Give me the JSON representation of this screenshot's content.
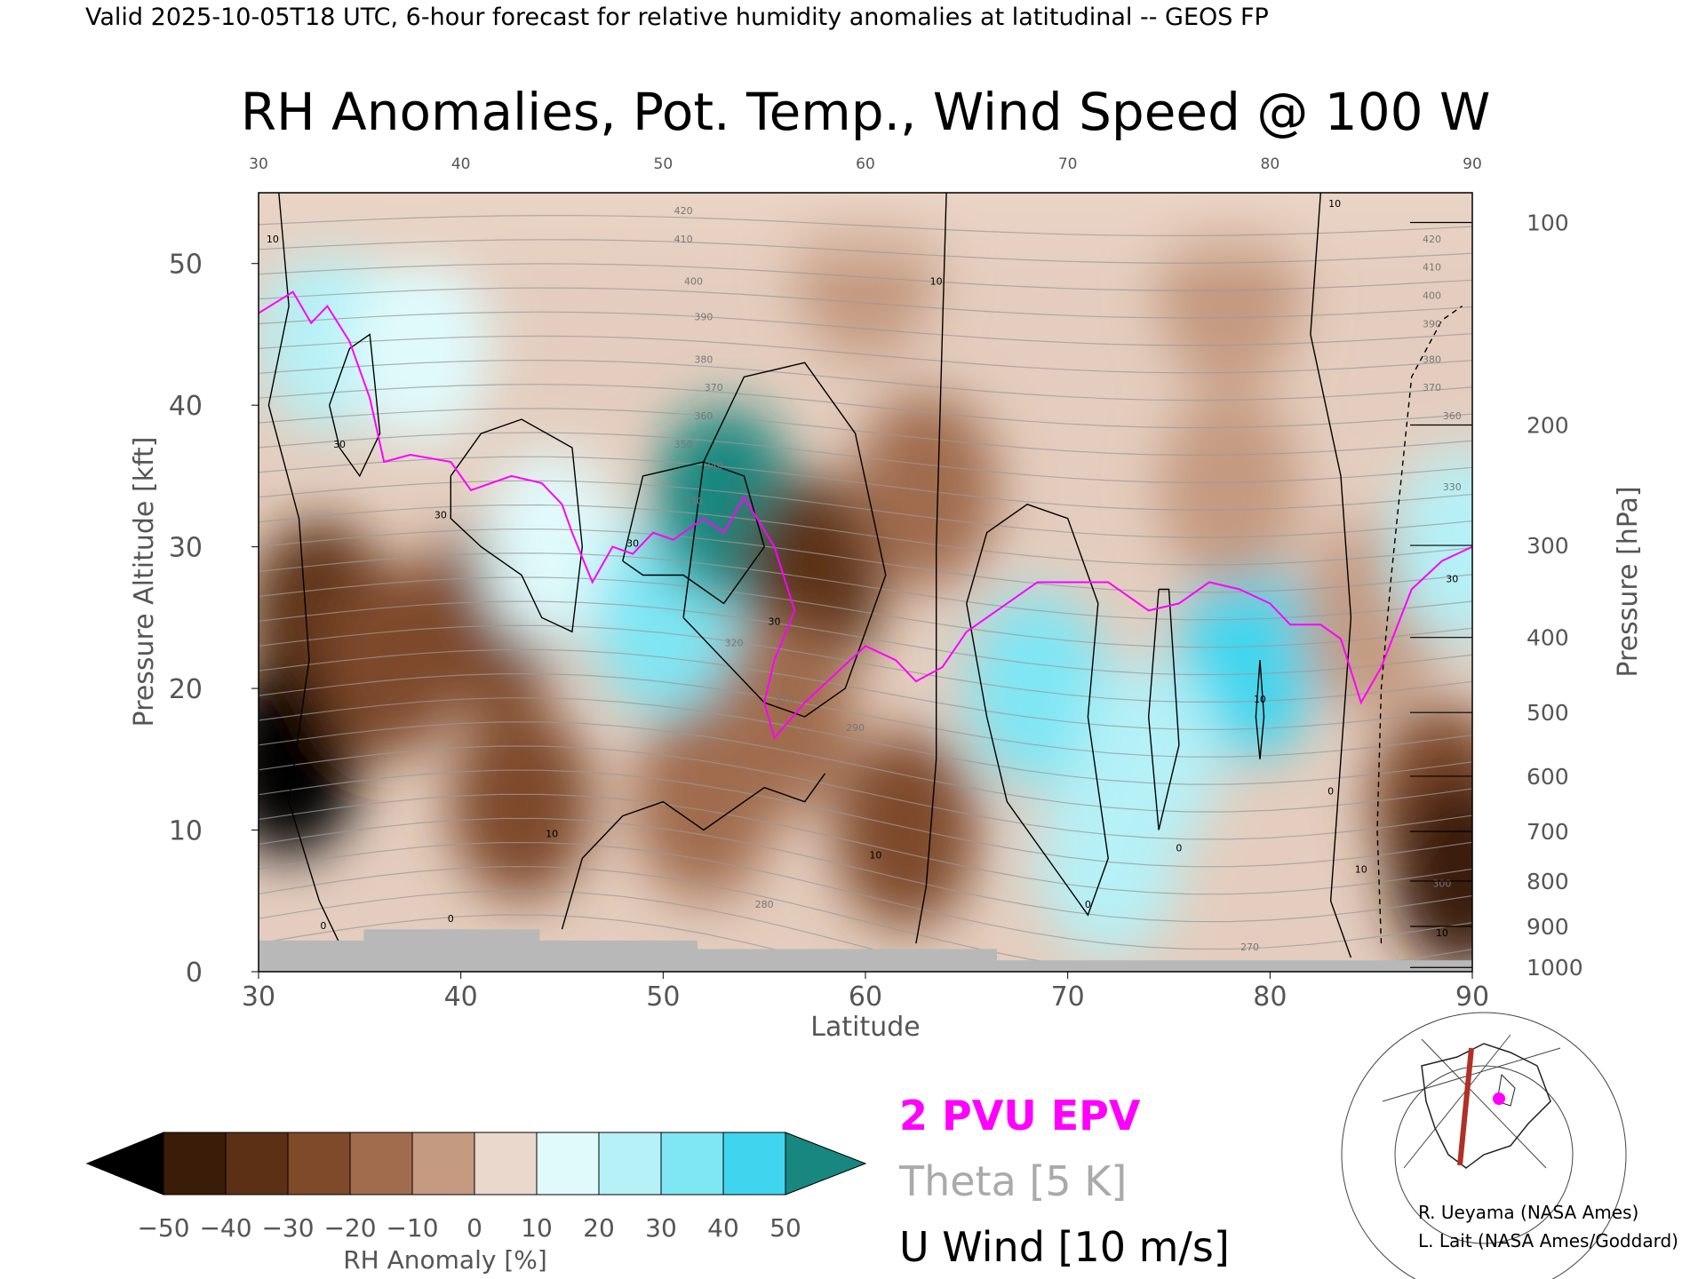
{
  "header": "Valid 2025-10-05T18 UTC, 6-hour forecast for relative humidity anomalies at latitudinal -- GEOS FP",
  "chart_data": {
    "type": "heatmap",
    "title": "RH Anomalies, Pot. Temp., Wind Speed @ 100 W",
    "xlabel": "Latitude",
    "ylabel": "Pressure Altitude [kft]",
    "y2label": "Pressure [hPa]",
    "xlim": [
      30,
      90
    ],
    "ylim": [
      0,
      55
    ],
    "x_ticks": [
      30,
      40,
      50,
      60,
      70,
      80,
      90
    ],
    "y_ticks": [
      0,
      10,
      20,
      30,
      40,
      50
    ],
    "pressure_ticks": [
      {
        "label": "100",
        "kft": 52.9
      },
      {
        "label": "200",
        "kft": 38.6
      },
      {
        "label": "300",
        "kft": 30.1
      },
      {
        "label": "400",
        "kft": 23.6
      },
      {
        "label": "500",
        "kft": 18.3
      },
      {
        "label": "600",
        "kft": 13.8
      },
      {
        "label": "700",
        "kft": 9.9
      },
      {
        "label": "800",
        "kft": 6.4
      },
      {
        "label": "900",
        "kft": 3.2
      },
      {
        "label": "1000",
        "kft": 0.3
      }
    ],
    "colorbar": {
      "label": "RH Anomaly [%]",
      "ticks": [
        -50,
        -40,
        -30,
        -20,
        -10,
        0,
        10,
        20,
        30,
        40,
        50
      ],
      "colors": [
        "#000000",
        "#3a1c08",
        "#5c3014",
        "#7e4a2a",
        "#a06c4d",
        "#c49a80",
        "#ead8cc",
        "#e0fafb",
        "#b5f1f7",
        "#7fe6f4",
        "#3fd5ee",
        "#13b4d8",
        "#0f8aa8",
        "#17877f"
      ]
    },
    "rh_anomaly_regions": [
      {
        "lat": 33.0,
        "kft": 25.0,
        "value": -35
      },
      {
        "lat": 31.5,
        "kft": 15.0,
        "value": -55
      },
      {
        "lat": 36.5,
        "kft": 22.0,
        "value": -30
      },
      {
        "lat": 41.5,
        "kft": 25.0,
        "value": -30
      },
      {
        "lat": 43.0,
        "kft": 12.0,
        "value": -30
      },
      {
        "lat": 33.5,
        "kft": 45.0,
        "value": 20
      },
      {
        "lat": 38.0,
        "kft": 44.0,
        "value": 15
      },
      {
        "lat": 44.5,
        "kft": 30.0,
        "value": 10
      },
      {
        "lat": 50.0,
        "kft": 25.0,
        "value": 35
      },
      {
        "lat": 53.0,
        "kft": 33.0,
        "value": 50
      },
      {
        "lat": 57.5,
        "kft": 28.0,
        "value": -35
      },
      {
        "lat": 56.0,
        "kft": 18.0,
        "value": -20
      },
      {
        "lat": 52.0,
        "kft": 12.0,
        "value": -15
      },
      {
        "lat": 62.0,
        "kft": 10.0,
        "value": -25
      },
      {
        "lat": 63.0,
        "kft": 34.0,
        "value": -15
      },
      {
        "lat": 68.5,
        "kft": 20.0,
        "value": 35
      },
      {
        "lat": 79.0,
        "kft": 22.0,
        "value": 40
      },
      {
        "lat": 74.0,
        "kft": 15.0,
        "value": 25
      },
      {
        "lat": 72.0,
        "kft": 8.0,
        "value": 20
      },
      {
        "lat": 78.0,
        "kft": 34.0,
        "value": -10
      },
      {
        "lat": 85.0,
        "kft": 25.0,
        "value": -10
      },
      {
        "lat": 88.5,
        "kft": 12.0,
        "value": -30
      },
      {
        "lat": 89.5,
        "kft": 7.0,
        "value": -50
      },
      {
        "lat": 89.5,
        "kft": 30.0,
        "value": 20
      },
      {
        "lat": 60.0,
        "kft": 50.0,
        "value": -5
      },
      {
        "lat": 78.0,
        "kft": 48.0,
        "value": -5
      }
    ],
    "theta_labels": [
      {
        "text": "420",
        "lat": 51.0,
        "kft": 53.5
      },
      {
        "text": "410",
        "lat": 51.0,
        "kft": 51.5
      },
      {
        "text": "400",
        "lat": 51.5,
        "kft": 48.5
      },
      {
        "text": "390",
        "lat": 52.0,
        "kft": 46.0
      },
      {
        "text": "380",
        "lat": 52.0,
        "kft": 43.0
      },
      {
        "text": "370",
        "lat": 52.5,
        "kft": 41.0
      },
      {
        "text": "360",
        "lat": 52.0,
        "kft": 39.0
      },
      {
        "text": "350",
        "lat": 51.0,
        "kft": 37.0
      },
      {
        "text": "340",
        "lat": 52.5,
        "kft": 35.5
      },
      {
        "text": "330",
        "lat": 51.5,
        "kft": 33.0
      },
      {
        "text": "320",
        "lat": 53.5,
        "kft": 23.0
      },
      {
        "text": "310",
        "lat": 56.0,
        "kft": 19.0
      },
      {
        "text": "290",
        "lat": 59.5,
        "kft": 17.0
      },
      {
        "text": "280",
        "lat": 55.0,
        "kft": 4.5
      },
      {
        "text": "270",
        "lat": 79.0,
        "kft": 1.5
      },
      {
        "text": "420",
        "lat": 88.0,
        "kft": 51.5
      },
      {
        "text": "410",
        "lat": 88.0,
        "kft": 49.5
      },
      {
        "text": "400",
        "lat": 88.0,
        "kft": 47.5
      },
      {
        "text": "390",
        "lat": 88.0,
        "kft": 45.5
      },
      {
        "text": "380",
        "lat": 88.0,
        "kft": 43.0
      },
      {
        "text": "370",
        "lat": 88.0,
        "kft": 41.0
      },
      {
        "text": "360",
        "lat": 89.0,
        "kft": 39.0
      },
      {
        "text": "330",
        "lat": 89.0,
        "kft": 34.0
      },
      {
        "text": "300",
        "lat": 88.5,
        "kft": 6.0
      }
    ],
    "wind_labels": [
      {
        "text": "10",
        "lat": 30.7,
        "kft": 51.5
      },
      {
        "text": "30",
        "lat": 34.0,
        "kft": 37.0
      },
      {
        "text": "30",
        "lat": 39.0,
        "kft": 32.0
      },
      {
        "text": "30",
        "lat": 48.5,
        "kft": 30.0
      },
      {
        "text": "30",
        "lat": 55.5,
        "kft": 24.5
      },
      {
        "text": "10",
        "lat": 63.5,
        "kft": 48.5
      },
      {
        "text": "10",
        "lat": 60.5,
        "kft": 8.0
      },
      {
        "text": "10",
        "lat": 44.5,
        "kft": 9.5
      },
      {
        "text": "0",
        "lat": 33.2,
        "kft": 3.0
      },
      {
        "text": "0",
        "lat": 39.5,
        "kft": 3.5
      },
      {
        "text": "0",
        "lat": 71.0,
        "kft": 4.5
      },
      {
        "text": "0",
        "lat": 75.5,
        "kft": 8.5
      },
      {
        "text": "10",
        "lat": 79.5,
        "kft": 19.0
      },
      {
        "text": "0",
        "lat": 83.0,
        "kft": 12.5
      },
      {
        "text": "10",
        "lat": 84.5,
        "kft": 7.0
      },
      {
        "text": "10",
        "lat": 83.2,
        "kft": 54.0
      },
      {
        "text": "30",
        "lat": 89.0,
        "kft": 27.5
      },
      {
        "text": "10",
        "lat": 88.5,
        "kft": 2.5
      }
    ],
    "epv_2pvu_line": [
      [
        30,
        46.5
      ],
      [
        31.7,
        48
      ],
      [
        32.6,
        45.8
      ],
      [
        33.4,
        47
      ],
      [
        34.5,
        44.5
      ],
      [
        35.5,
        40.5
      ],
      [
        36.2,
        36
      ],
      [
        37.5,
        36.5
      ],
      [
        39.5,
        36
      ],
      [
        40.5,
        34
      ],
      [
        42.5,
        35
      ],
      [
        44,
        34.5
      ],
      [
        45,
        33
      ],
      [
        45.5,
        31
      ],
      [
        46.5,
        27.5
      ],
      [
        47.5,
        30
      ],
      [
        48.5,
        29.5
      ],
      [
        49.5,
        31
      ],
      [
        50.5,
        30.5
      ],
      [
        52,
        32
      ],
      [
        53,
        31
      ],
      [
        54,
        33.5
      ],
      [
        55.5,
        30
      ],
      [
        56.5,
        25.5
      ],
      [
        55.5,
        22
      ],
      [
        55,
        19
      ],
      [
        55.5,
        16.5
      ],
      [
        57,
        19
      ],
      [
        58.5,
        21
      ],
      [
        60,
        23
      ],
      [
        61.5,
        22
      ],
      [
        62.5,
        20.5
      ],
      [
        63.8,
        21.5
      ],
      [
        65,
        24
      ],
      [
        67,
        26
      ],
      [
        68.5,
        27.5
      ],
      [
        70,
        27.5
      ],
      [
        72,
        27.5
      ],
      [
        74,
        25.5
      ],
      [
        75.5,
        26
      ],
      [
        77,
        27.5
      ],
      [
        78.5,
        27
      ],
      [
        80,
        26
      ],
      [
        81,
        24.5
      ],
      [
        82.5,
        24.5
      ],
      [
        83.5,
        23.5
      ],
      [
        84.5,
        19
      ],
      [
        85.5,
        21.5
      ],
      [
        87,
        27
      ],
      [
        88.5,
        29
      ],
      [
        90,
        30
      ]
    ],
    "terrain_steps": [
      [
        30,
        2.2
      ],
      [
        35.2,
        2.2
      ],
      [
        35.2,
        3.0
      ],
      [
        43.9,
        3.0
      ],
      [
        43.9,
        2.2
      ],
      [
        51.7,
        2.2
      ],
      [
        51.7,
        1.6
      ],
      [
        66.5,
        1.6
      ],
      [
        66.5,
        0.8
      ],
      [
        90,
        0.8
      ]
    ],
    "legend": [
      {
        "label": "2 PVU EPV",
        "color": "#ff00ff"
      },
      {
        "label": "Theta [5 K]",
        "color": "#aaaaaa"
      },
      {
        "label": "U Wind [10 m/s]",
        "color": "#000000"
      }
    ],
    "credits": [
      "R. Ueyama (NASA Ames)",
      "L. Lait (NASA Ames/Goddard)"
    ]
  }
}
